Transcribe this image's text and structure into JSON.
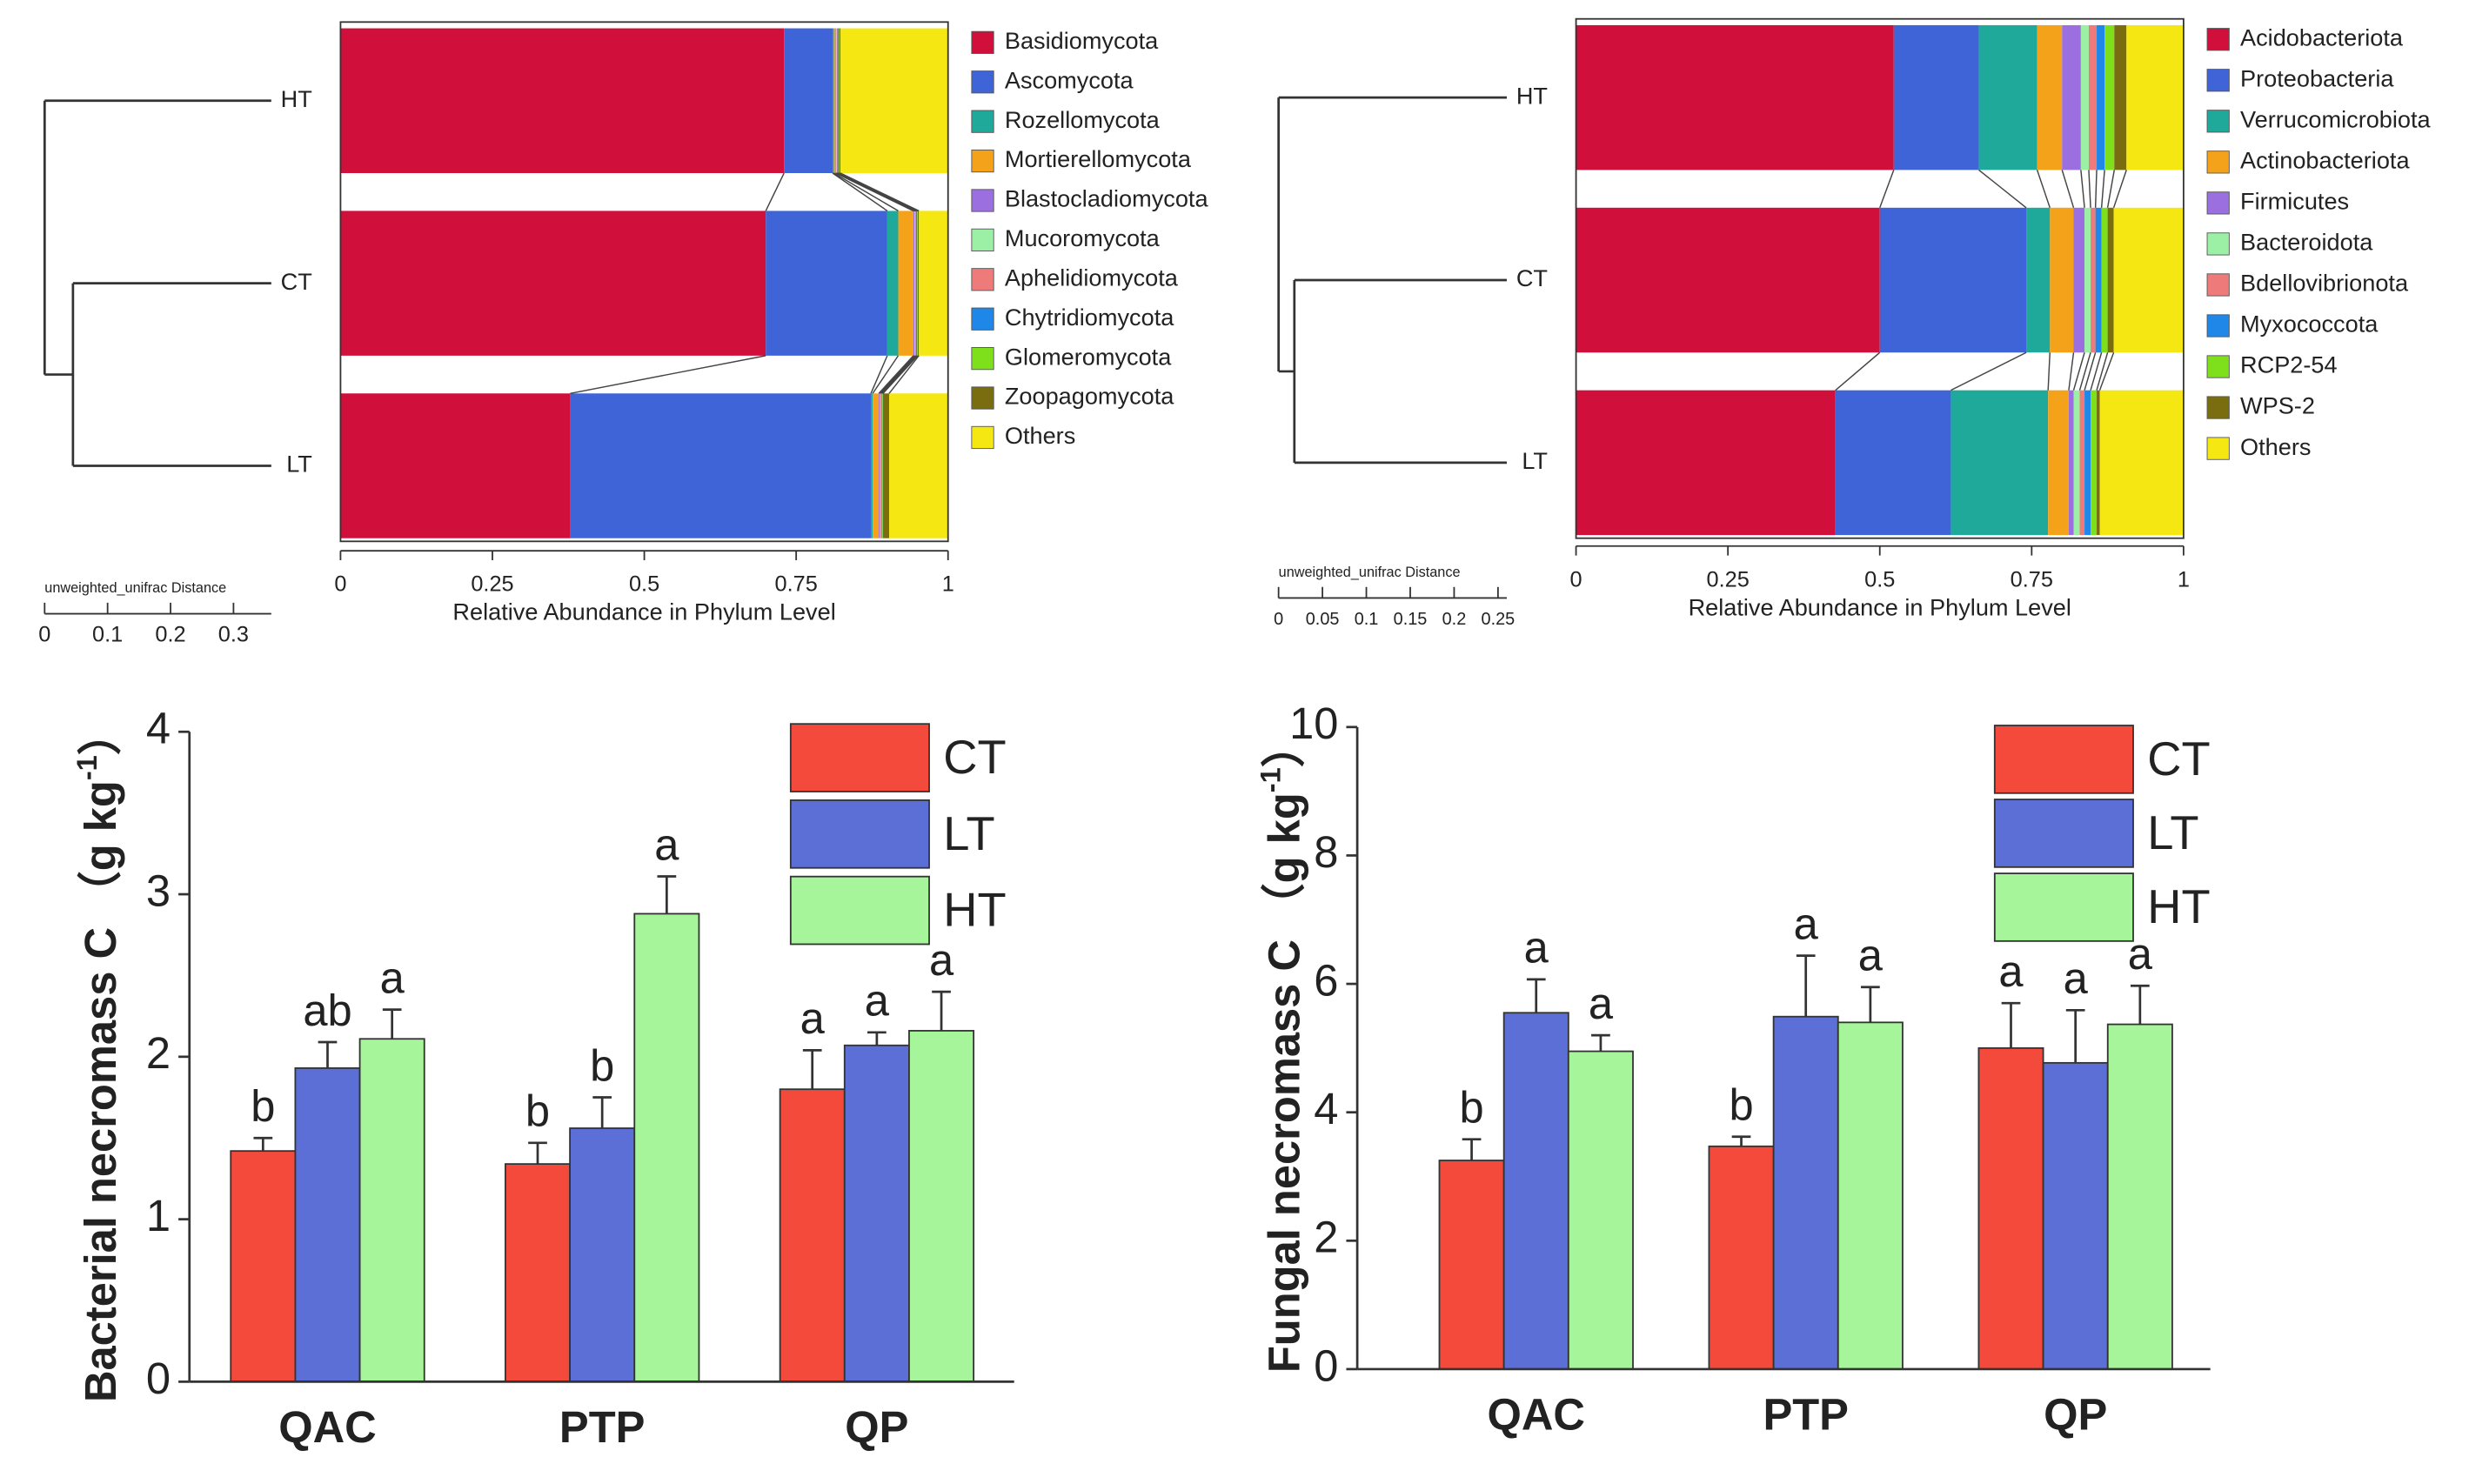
{
  "chart_data": [
    {
      "type": "stacked_barh",
      "categories": [
        "HT",
        "CT",
        "LT"
      ],
      "xlim": [
        0,
        1
      ],
      "xticks": [
        0,
        0.25,
        0.5,
        0.75,
        1
      ],
      "xlabel": "Relative Abundance in Phylum Level",
      "series": [
        {
          "name": "Basidiomycota",
          "color": "#d0103a",
          "values": [
            0.73,
            0.7,
            0.378
          ]
        },
        {
          "name": "Ascomycota",
          "color": "#3f64d8",
          "values": [
            0.08,
            0.2,
            0.495
          ]
        },
        {
          "name": "Rozellomycota",
          "color": "#1fa99a",
          "values": [
            0.002,
            0.018,
            0.003
          ]
        },
        {
          "name": "Mortierellomycota",
          "color": "#f5a21b",
          "values": [
            0.003,
            0.025,
            0.01
          ]
        },
        {
          "name": "Blastocladiomycota",
          "color": "#9b6fe0",
          "values": [
            0.001,
            0.002,
            0.002
          ]
        },
        {
          "name": "Mucoromycota",
          "color": "#9cf0a6",
          "values": [
            0.001,
            0.001,
            0.001
          ]
        },
        {
          "name": "Aphelidiomycota",
          "color": "#ef7a7a",
          "values": [
            0.001,
            0.001,
            0.002
          ]
        },
        {
          "name": "Chytridiomycota",
          "color": "#1f87e8",
          "values": [
            0.002,
            0.002,
            0.001
          ]
        },
        {
          "name": "Glomeromycota",
          "color": "#7ee01b",
          "values": [
            0.001,
            0.001,
            0.001
          ]
        },
        {
          "name": "Zoopagomycota",
          "color": "#7a6d10",
          "values": [
            0.002,
            0.002,
            0.01
          ]
        },
        {
          "name": "Others",
          "color": "#f5e812",
          "values": [
            0.177,
            0.048,
            0.097
          ]
        }
      ],
      "dendrogram": {
        "xlabel": "unweighted_unifrac Distance",
        "xlim": [
          0,
          0.36
        ],
        "xticks": [
          0,
          0.1,
          0.2,
          0.3
        ],
        "leaf_distance": 0.36,
        "joins": [
          {
            "members": [
              1,
              2
            ],
            "distance": 0.045
          },
          {
            "members": [
              0,
              1,
              2
            ],
            "distance": 0
          }
        ]
      }
    },
    {
      "type": "stacked_barh",
      "categories": [
        "HT",
        "CT",
        "LT"
      ],
      "xlim": [
        0,
        1
      ],
      "xticks": [
        0,
        0.25,
        0.5,
        0.75,
        1
      ],
      "xlabel": "Relative Abundance in Phylum Level",
      "series": [
        {
          "name": "Acidobacteriota",
          "color": "#d0103a",
          "values": [
            0.523,
            0.5,
            0.427
          ]
        },
        {
          "name": "Proteobacteria",
          "color": "#3f64d8",
          "values": [
            0.14,
            0.241,
            0.19
          ]
        },
        {
          "name": "Verrucomicrobiota",
          "color": "#1fa99a",
          "values": [
            0.096,
            0.039,
            0.16
          ]
        },
        {
          "name": "Actinobacteriota",
          "color": "#f5a21b",
          "values": [
            0.041,
            0.039,
            0.034
          ]
        },
        {
          "name": "Firmicutes",
          "color": "#9b6fe0",
          "values": [
            0.031,
            0.018,
            0.008
          ]
        },
        {
          "name": "Bacteroidota",
          "color": "#9cf0a6",
          "values": [
            0.013,
            0.01,
            0.01
          ]
        },
        {
          "name": "Bdellovibrionota",
          "color": "#ef7a7a",
          "values": [
            0.013,
            0.008,
            0.008
          ]
        },
        {
          "name": "Myxococcota",
          "color": "#1f87e8",
          "values": [
            0.013,
            0.01,
            0.01
          ]
        },
        {
          "name": "RCP2-54",
          "color": "#7ee01b",
          "values": [
            0.016,
            0.01,
            0.01
          ]
        },
        {
          "name": "WPS-2",
          "color": "#7a6d10",
          "values": [
            0.02,
            0.01,
            0.005
          ]
        },
        {
          "name": "Others",
          "color": "#f5e812",
          "values": [
            0.094,
            0.115,
            0.138
          ]
        }
      ],
      "dendrogram": {
        "xlabel": "unweighted_unifrac Distance",
        "xlim": [
          0,
          0.26
        ],
        "xticks": [
          0,
          0.05,
          0.1,
          0.15,
          0.2,
          0.25
        ],
        "leaf_distance": 0.26,
        "joins": [
          {
            "members": [
              1,
              2
            ],
            "distance": 0.018
          },
          {
            "members": [
              0,
              1,
              2
            ],
            "distance": 0
          }
        ]
      }
    },
    {
      "type": "bar",
      "categories": [
        "QAC",
        "PTP",
        "QP"
      ],
      "ylabel": [
        "Bacterial necromass C （g kg",
        "-1",
        "）"
      ],
      "ylim": [
        0,
        4
      ],
      "yticks": [
        0,
        1,
        2,
        3,
        4
      ],
      "series": [
        {
          "name": "CT",
          "color": "#f44a3c",
          "values": [
            1.42,
            1.34,
            1.8
          ],
          "errors": [
            0.08,
            0.13,
            0.24
          ],
          "significance_letters": [
            "b",
            "b",
            "a"
          ]
        },
        {
          "name": "LT",
          "color": "#5b6fd6",
          "values": [
            1.93,
            1.56,
            2.07
          ],
          "errors": [
            0.16,
            0.19,
            0.08
          ],
          "significance_letters": [
            "ab",
            "b",
            "a"
          ]
        },
        {
          "name": "HT",
          "color": "#a7f59a",
          "values": [
            2.11,
            2.88,
            2.16
          ],
          "errors": [
            0.18,
            0.23,
            0.24
          ],
          "significance_letters": [
            "a",
            "a",
            "a"
          ]
        }
      ]
    },
    {
      "type": "bar",
      "categories": [
        "QAC",
        "PTP",
        "QP"
      ],
      "ylabel": [
        "Fungal necromass C （g kg",
        "-1",
        "）"
      ],
      "ylim": [
        0,
        10
      ],
      "yticks": [
        0,
        2,
        4,
        6,
        8,
        10
      ],
      "series": [
        {
          "name": "CT",
          "color": "#f44a3c",
          "values": [
            3.25,
            3.47,
            5.0
          ],
          "errors": [
            0.33,
            0.15,
            0.7
          ],
          "significance_letters": [
            "b",
            "b",
            "a"
          ]
        },
        {
          "name": "LT",
          "color": "#5b6fd6",
          "values": [
            5.55,
            5.49,
            4.77
          ],
          "errors": [
            0.52,
            0.95,
            0.82
          ],
          "significance_letters": [
            "a",
            "a",
            "a"
          ]
        },
        {
          "name": "HT",
          "color": "#a7f59a",
          "values": [
            4.95,
            5.4,
            5.37
          ],
          "errors": [
            0.25,
            0.55,
            0.6
          ],
          "significance_letters": [
            "a",
            "a",
            "a"
          ]
        }
      ]
    }
  ]
}
